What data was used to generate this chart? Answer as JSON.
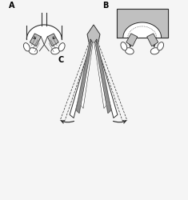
{
  "panel_bg": "#f5f5f5",
  "label_A": "A",
  "label_B": "B",
  "label_C": "C",
  "gray_light": "#c0c0c0",
  "gray_medium": "#909090",
  "gray_dark": "#505050",
  "outline_color": "#303030",
  "arrow_color": "#202020",
  "white": "#ffffff"
}
